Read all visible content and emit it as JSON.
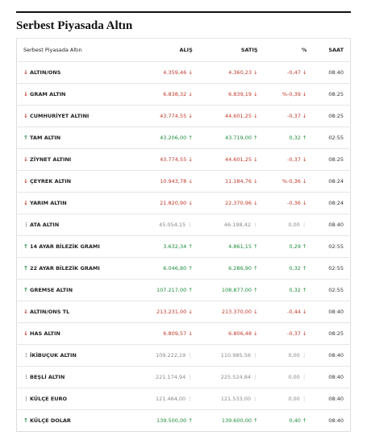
{
  "header": {
    "title": "Serbest Piyasada Altın"
  },
  "table": {
    "columns": [
      "Serbest Piyasada Altın",
      "ALIŞ",
      "SATIŞ",
      "%",
      "SAAT"
    ],
    "rows": [
      {
        "name": "ALTIN/ONS",
        "buy": "4.359,46",
        "sell": "4.360,23",
        "change": "-0,47",
        "time": "08:40",
        "direction": "down"
      },
      {
        "name": "GRAM ALTIN",
        "buy": "6.838,32",
        "sell": "6.839,19",
        "change": "%-0,39",
        "time": "08:25",
        "direction": "down"
      },
      {
        "name": "CUMHURİYET ALTINI",
        "buy": "43.774,55",
        "sell": "44.601,25",
        "change": "-0,37",
        "time": "08:25",
        "direction": "down"
      },
      {
        "name": "TAM ALTIN",
        "buy": "43.206,00",
        "sell": "43.719,00",
        "change": "0,32",
        "time": "02:55",
        "direction": "up"
      },
      {
        "name": "ZİYNET ALTINI",
        "buy": "43.774,55",
        "sell": "44.601,25",
        "change": "-0,37",
        "time": "08:25",
        "direction": "down"
      },
      {
        "name": "ÇEYREK ALTIN",
        "buy": "10.943,78",
        "sell": "11.184,76",
        "change": "%-0,36",
        "time": "08:24",
        "direction": "down"
      },
      {
        "name": "YARIM ALTIN",
        "buy": "21.820,90",
        "sell": "22.370,96",
        "change": "-0,36",
        "time": "08:24",
        "direction": "down"
      },
      {
        "name": "ATA ALTIN",
        "buy": "45.054,15",
        "sell": "46.198,42",
        "change": "0,00",
        "time": "08:40",
        "direction": "flat"
      },
      {
        "name": "14 AYAR BİLEZİK GRAMI",
        "buy": "3.632,34",
        "sell": "4.861,15",
        "change": "0,29",
        "time": "02:55",
        "direction": "up"
      },
      {
        "name": "22 AYAR BİLEZİK GRAMI",
        "buy": "6.046,80",
        "sell": "6.286,90",
        "change": "0,32",
        "time": "02:55",
        "direction": "up"
      },
      {
        "name": "GREMSE ALTIN",
        "buy": "107.217,00",
        "sell": "108.877,00",
        "change": "0,32",
        "time": "02:55",
        "direction": "up"
      },
      {
        "name": "ALTIN/ONS TL",
        "buy": "213.231,00",
        "sell": "213.370,00",
        "change": "-0,44",
        "time": "08:40",
        "direction": "down"
      },
      {
        "name": "HAS ALTIN",
        "buy": "6.809,57",
        "sell": "6.806,48",
        "change": "-0,37",
        "time": "08:25",
        "direction": "down"
      },
      {
        "name": "İKİBUÇUK ALTIN",
        "buy": "109.222,19",
        "sell": "110.985,56",
        "change": "0,00",
        "time": "08:40",
        "direction": "flat"
      },
      {
        "name": "BEŞLİ ALTIN",
        "buy": "221.174,94",
        "sell": "225.524,84",
        "change": "0,00",
        "time": "08:40",
        "direction": "flat"
      },
      {
        "name": "KÜLÇE EURO",
        "buy": "121.464,00",
        "sell": "121.533,00",
        "change": "0,00",
        "time": "08:40",
        "direction": "flat"
      },
      {
        "name": "KÜLÇE DOLAR",
        "buy": "139.500,00",
        "sell": "139.600,00",
        "change": "0,40",
        "time": "08:40",
        "direction": "up"
      }
    ]
  }
}
